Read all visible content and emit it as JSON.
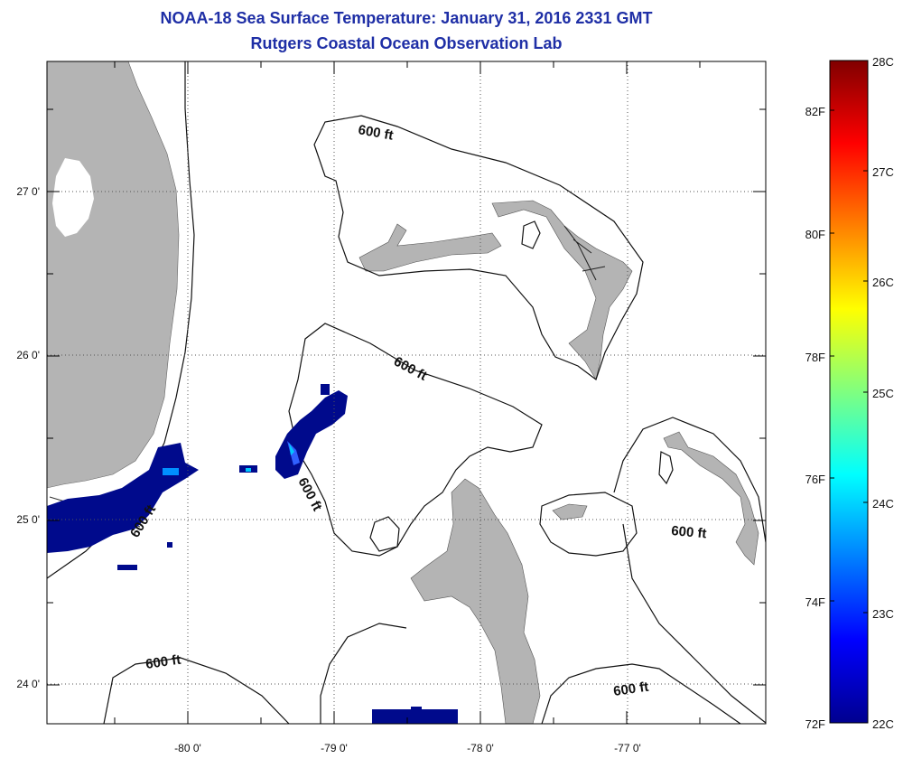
{
  "title": "NOAA-18 Sea Surface Temperature:  January 31, 2016 2331 GMT",
  "subtitle": "Rutgers Coastal Ocean Observation Lab",
  "lon_ticks": [
    "-80 0'",
    "-79 0'",
    "-78 0'",
    "-77 0'"
  ],
  "lat_ticks": [
    "27 0'",
    "26 0'",
    "25 0'",
    "24 0'"
  ],
  "contour_label": "600 ft",
  "colorbar": {
    "celsius_labels": [
      "28C",
      "27C",
      "26C",
      "25C",
      "24C",
      "23C",
      "22C"
    ],
    "fahrenheit_labels": [
      "82F",
      "80F",
      "78F",
      "76F",
      "74F",
      "72F"
    ]
  },
  "colors": {
    "title": "#1f2fa6",
    "land": "#b4b4b4",
    "sst_cold": "#000a8c"
  }
}
